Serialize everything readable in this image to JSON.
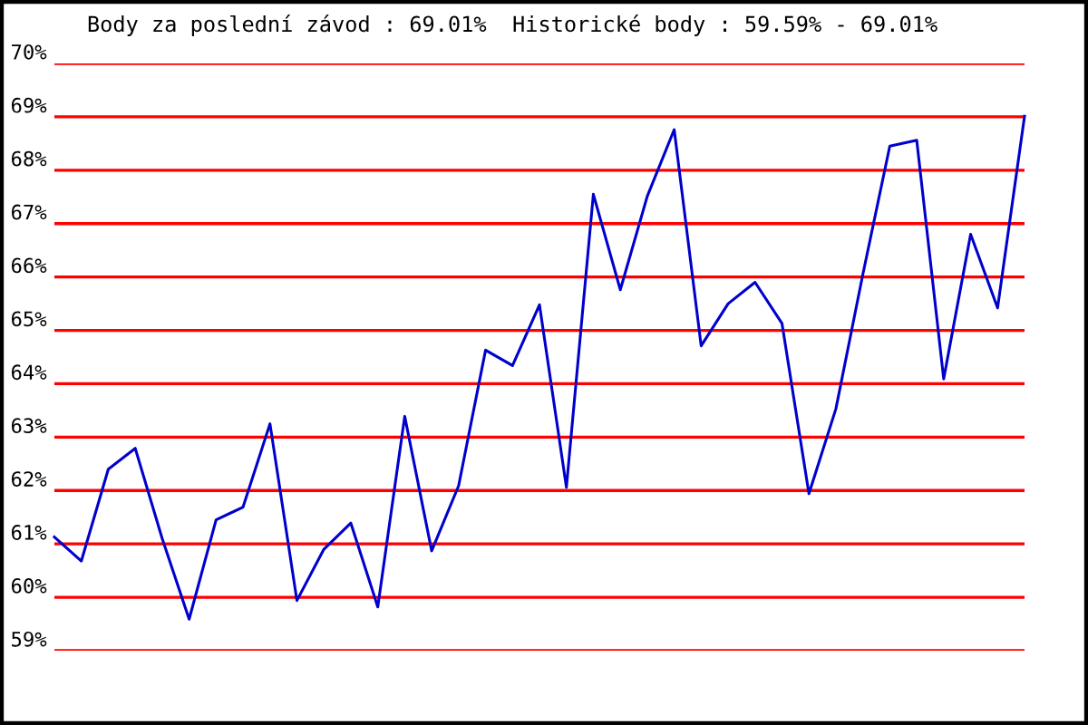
{
  "chart_data": {
    "type": "line",
    "title": "Body za poslední závod : 69.01%  Historické body : 59.59% - 69.01%",
    "categories": [
      null,
      null,
      null,
      null,
      null,
      null,
      null,
      null,
      null,
      null,
      null,
      null,
      null,
      null,
      null,
      null,
      null,
      null,
      null,
      null,
      null,
      null,
      null,
      null,
      null,
      null,
      null,
      null,
      null,
      null,
      null,
      null,
      null,
      null,
      null,
      null,
      null
    ],
    "series": [
      {
        "color": "#0000cc",
        "values": [
          61.13,
          60.68,
          62.4,
          62.79,
          61.1,
          59.59,
          61.45,
          61.69,
          63.25,
          59.94,
          60.9,
          61.39,
          59.82,
          63.39,
          60.87,
          62.09,
          64.63,
          64.34,
          65.48,
          62.06,
          67.55,
          65.76,
          67.51,
          68.76,
          64.71,
          65.5,
          65.9,
          65.13,
          61.94,
          63.53,
          66.05,
          68.45,
          68.56,
          64.09,
          66.8,
          65.42,
          69.01
        ]
      }
    ],
    "ylim": [
      59,
      70
    ],
    "yticks": [
      {
        "value": 59,
        "label": "59%"
      },
      {
        "value": 60,
        "label": "60%"
      },
      {
        "value": 61,
        "label": "61%"
      },
      {
        "value": 62,
        "label": "62%"
      },
      {
        "value": 63,
        "label": "63%"
      },
      {
        "value": 64,
        "label": "64%"
      },
      {
        "value": 65,
        "label": "65%"
      },
      {
        "value": 66,
        "label": "66%"
      },
      {
        "value": 67,
        "label": "67%"
      },
      {
        "value": 68,
        "label": "68%"
      },
      {
        "value": 69,
        "label": "69%"
      },
      {
        "value": 70,
        "label": "70%"
      }
    ],
    "grid": "y",
    "tick_labels": "y",
    "marker": "none",
    "line_style": "solid",
    "legend": false
  }
}
